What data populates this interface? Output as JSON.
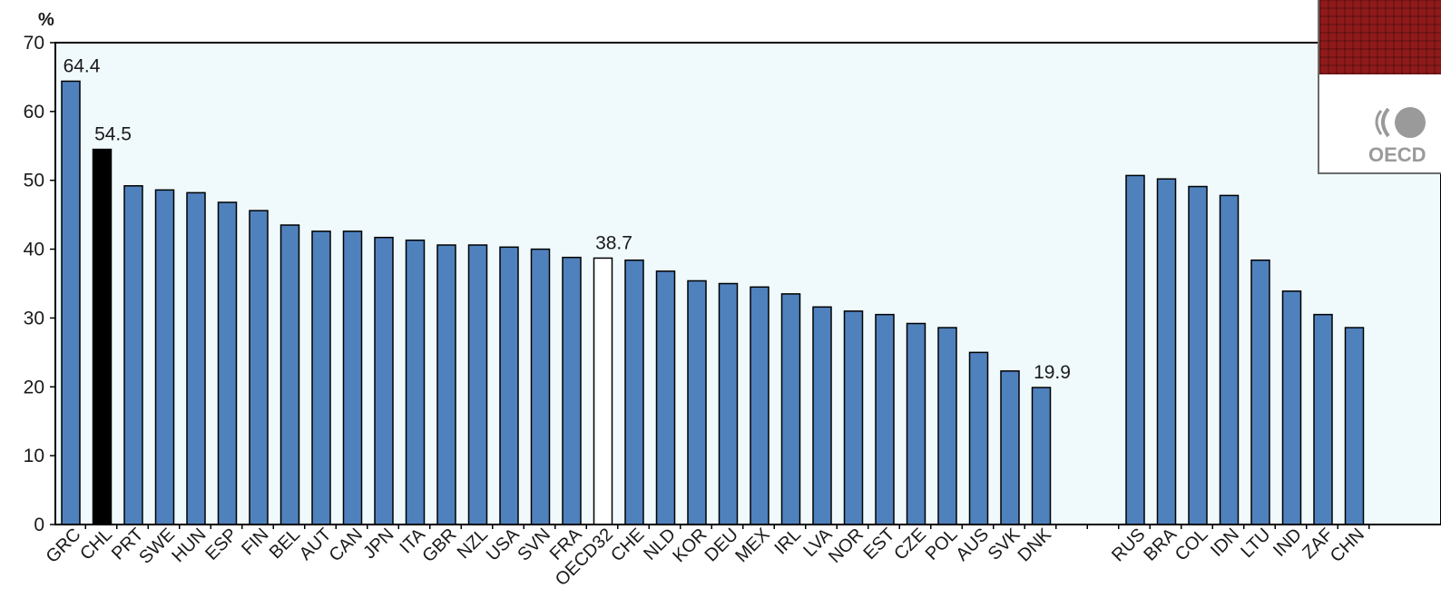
{
  "chart_data": {
    "type": "bar",
    "ylabel": "%",
    "ylim": [
      0,
      70
    ],
    "yticks": [
      0,
      10,
      20,
      30,
      40,
      50,
      60,
      70
    ],
    "colors": {
      "default": "#4f81bd",
      "highlight": "#000000",
      "average": "#ffffff",
      "outline": "#000000",
      "plot_background": "#f0fafd"
    },
    "categories": [
      "GRC",
      "CHL",
      "PRT",
      "SWE",
      "HUN",
      "ESP",
      "FIN",
      "BEL",
      "AUT",
      "CAN",
      "JPN",
      "ITA",
      "GBR",
      "NZL",
      "USA",
      "SVN",
      "FRA",
      "OECD32",
      "CHE",
      "NLD",
      "KOR",
      "DEU",
      "MEX",
      "IRL",
      "LVA",
      "NOR",
      "EST",
      "CZE",
      "POL",
      "AUS",
      "SVK",
      "DNK",
      "",
      "",
      "RUS",
      "BRA",
      "COL",
      "IDN",
      "LTU",
      "IND",
      "ZAF",
      "CHN"
    ],
    "values": [
      64.4,
      54.5,
      49.2,
      48.6,
      48.2,
      46.8,
      45.6,
      43.5,
      42.6,
      42.6,
      41.7,
      41.3,
      40.6,
      40.6,
      40.3,
      40.0,
      38.8,
      38.7,
      38.4,
      36.8,
      35.4,
      35.0,
      34.5,
      33.5,
      31.6,
      31.0,
      30.5,
      29.2,
      28.6,
      25.0,
      22.3,
      19.9,
      null,
      null,
      50.7,
      50.2,
      49.1,
      47.8,
      38.4,
      33.9,
      30.5,
      28.6
    ],
    "bar_styles": [
      "default",
      "highlight",
      "default",
      "default",
      "default",
      "default",
      "default",
      "default",
      "default",
      "default",
      "default",
      "default",
      "default",
      "default",
      "default",
      "default",
      "default",
      "average",
      "default",
      "default",
      "default",
      "default",
      "default",
      "default",
      "default",
      "default",
      "default",
      "default",
      "default",
      "default",
      "default",
      "default",
      "gap",
      "gap",
      "default",
      "default",
      "default",
      "default",
      "default",
      "default",
      "default",
      "default"
    ],
    "data_labels": [
      {
        "index": 0,
        "text": "64.4"
      },
      {
        "index": 1,
        "text": "54.5"
      },
      {
        "index": 17,
        "text": "38.7"
      },
      {
        "index": 31,
        "text": "19.9"
      }
    ]
  },
  "logo": {
    "icon": "oecd-publication-cover-icon",
    "text": "OECD"
  }
}
